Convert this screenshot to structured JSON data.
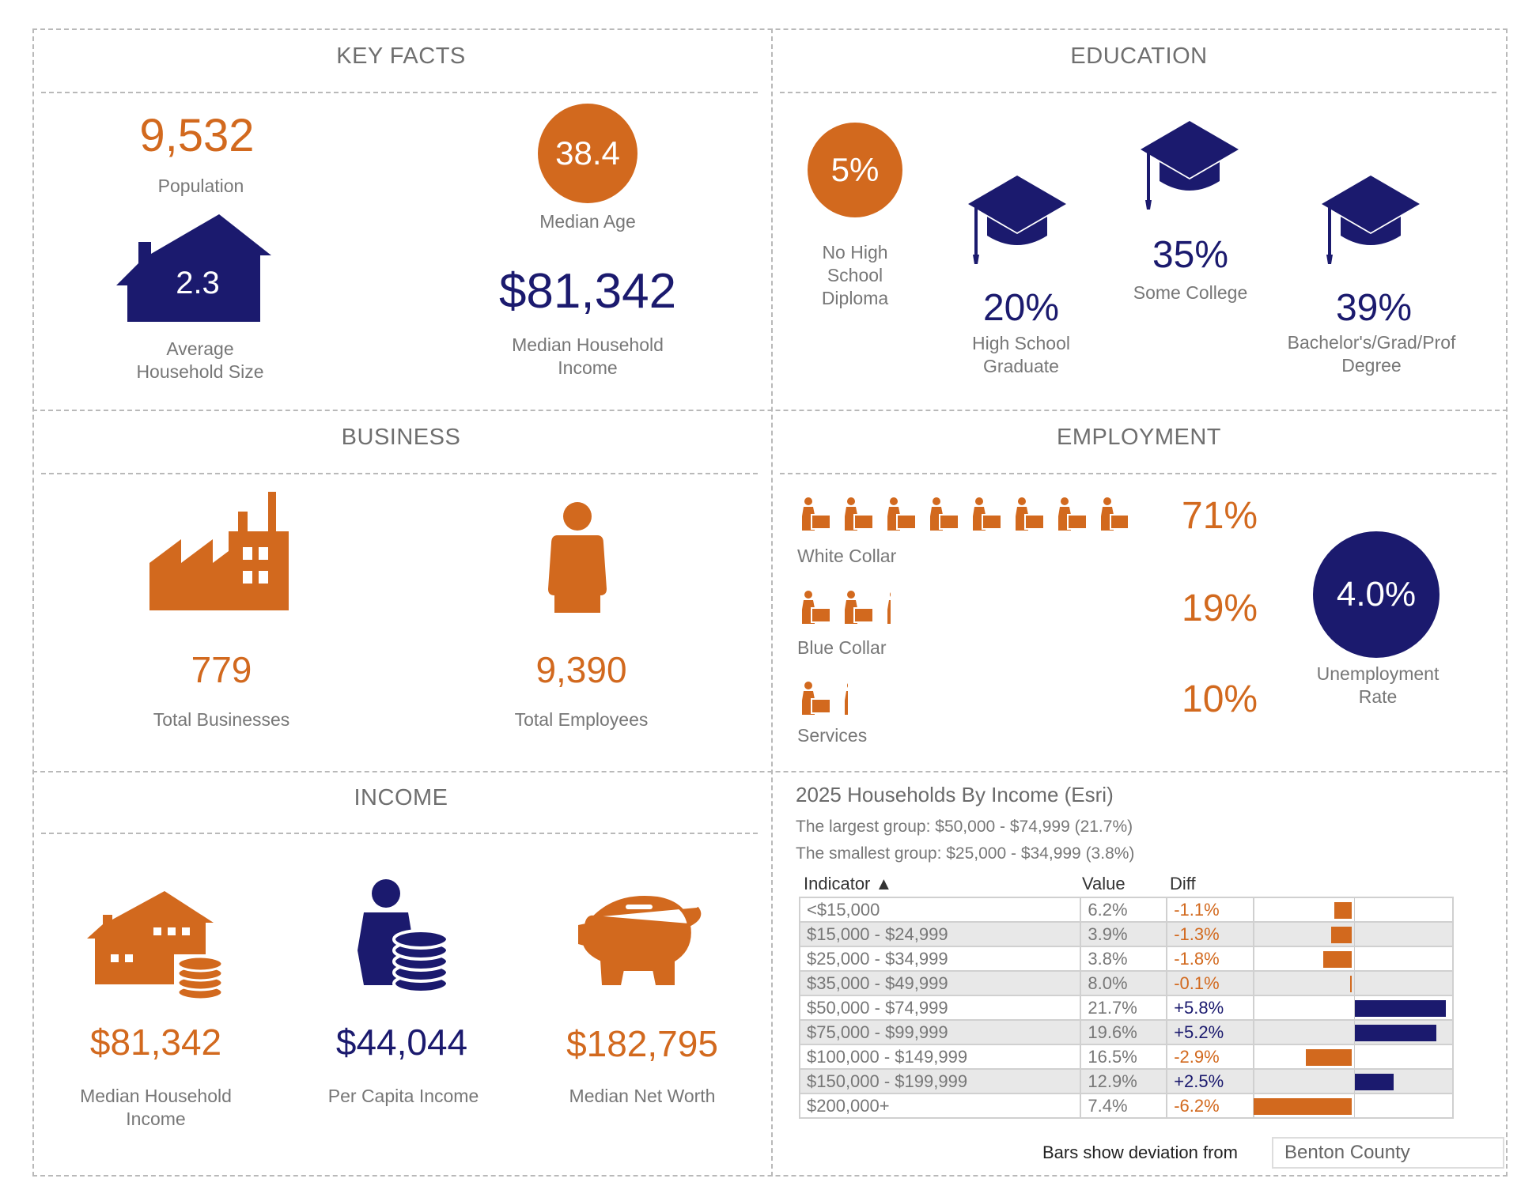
{
  "colors": {
    "orange": "#d2691e",
    "navy": "#1b1a6e"
  },
  "key_facts": {
    "title": "KEY FACTS",
    "population": "9,532",
    "population_label": "Population",
    "household_size": "2.3",
    "household_size_label": [
      "Average",
      "Household Size"
    ],
    "median_age": "38.4",
    "median_age_label": "Median Age",
    "median_income": "$81,342",
    "median_income_label": [
      "Median Household",
      "Income"
    ]
  },
  "education": {
    "title": "EDUCATION",
    "no_hs": "5%",
    "no_hs_label": [
      "No High",
      "School",
      "Diploma"
    ],
    "hs": "20%",
    "hs_label": [
      "High School",
      "Graduate"
    ],
    "some_college": "35%",
    "some_college_label": "Some College",
    "bachelors": "39%",
    "bachelors_label": [
      "Bachelor's/Grad/Prof",
      "Degree"
    ]
  },
  "business": {
    "title": "BUSINESS",
    "total_businesses": "779",
    "total_businesses_label": "Total Businesses",
    "total_employees": "9,390",
    "total_employees_label": "Total Employees"
  },
  "employment": {
    "title": "EMPLOYMENT",
    "rows": [
      {
        "label": "White Collar",
        "value": "71%",
        "pct": 71,
        "icon": "white-collar-worker-icon"
      },
      {
        "label": "Blue Collar",
        "value": "19%",
        "pct": 19,
        "icon": "blue-collar-worker-icon"
      },
      {
        "label": "Services",
        "value": "10%",
        "pct": 10,
        "icon": "service-worker-icon"
      }
    ],
    "unemployment": "4.0%",
    "unemployment_label": [
      "Unemployment",
      "Rate"
    ]
  },
  "income": {
    "title": "INCOME",
    "median_hh": "$81,342",
    "median_hh_label": [
      "Median Household",
      "Income"
    ],
    "per_capita": "$44,044",
    "per_capita_label": "Per Capita Income",
    "net_worth": "$182,795",
    "net_worth_label": "Median Net Worth"
  },
  "households": {
    "title": "2025 Households By Income (Esri)",
    "largest": "The largest group: $50,000 - $74,999 (21.7%)",
    "smallest": "The smallest group: $25,000 - $34,999 (3.8%)",
    "headers": {
      "indicator": "Indicator",
      "sort_icon": "▲",
      "value": "Value",
      "diff": "Diff"
    },
    "rows": [
      {
        "indicator": "<$15,000",
        "value": "6.2%",
        "diff": "-1.1%",
        "d": -1.1
      },
      {
        "indicator": "$15,000 - $24,999",
        "value": "3.9%",
        "diff": "-1.3%",
        "d": -1.3
      },
      {
        "indicator": "$25,000 - $34,999",
        "value": "3.8%",
        "diff": "-1.8%",
        "d": -1.8
      },
      {
        "indicator": "$35,000 - $49,999",
        "value": "8.0%",
        "diff": "-0.1%",
        "d": -0.1
      },
      {
        "indicator": "$50,000 - $74,999",
        "value": "21.7%",
        "diff": "+5.8%",
        "d": 5.8
      },
      {
        "indicator": "$75,000 - $99,999",
        "value": "19.6%",
        "diff": "+5.2%",
        "d": 5.2
      },
      {
        "indicator": "$100,000 - $149,999",
        "value": "16.5%",
        "diff": "-2.9%",
        "d": -2.9
      },
      {
        "indicator": "$150,000 - $199,999",
        "value": "12.9%",
        "diff": "+2.5%",
        "d": 2.5
      },
      {
        "indicator": "$200,000+",
        "value": "7.4%",
        "diff": "-6.2%",
        "d": -6.2
      }
    ],
    "footer": "Bars show deviation from",
    "compare": "Benton County"
  }
}
